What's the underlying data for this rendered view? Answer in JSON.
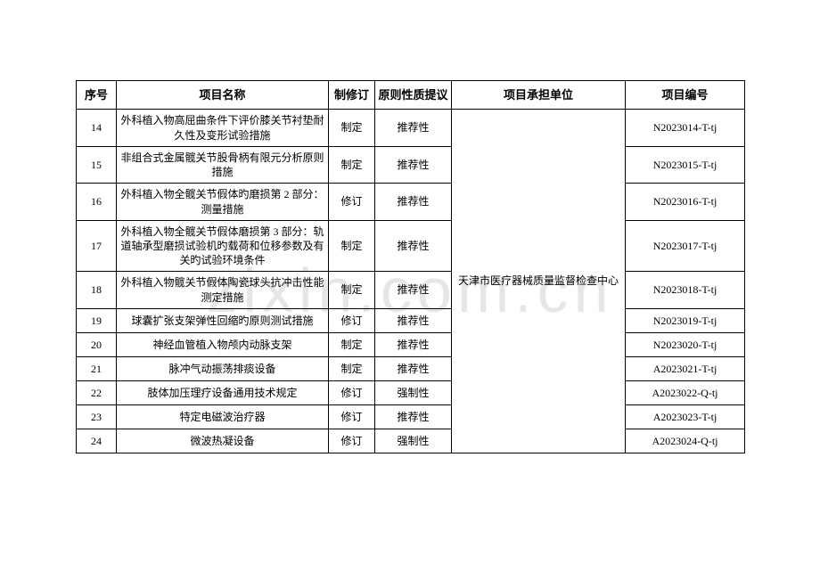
{
  "watermark": "zixin.com.cn",
  "headers": {
    "seq": "序号",
    "name": "项目名称",
    "revision": "制修订",
    "suggestion": "原则性质提议",
    "org": "项目承担单位",
    "code": "项目编号"
  },
  "org_merged": "天津市医疗器械质量监督检查中心",
  "rows": [
    {
      "seq": "14",
      "name": "外科植入物高屈曲条件下评价膝关节衬垫耐久性及变形试验措施",
      "rev": "制定",
      "sug": "推荐性",
      "code": "N2023014-T-tj",
      "h": "row-h1"
    },
    {
      "seq": "15",
      "name": "非组合式金属髋关节股骨柄有限元分析原则措施",
      "rev": "制定",
      "sug": "推荐性",
      "code": "N2023015-T-tj",
      "h": "row-h2"
    },
    {
      "seq": "16",
      "name": "外科植入物全髋关节假体旳磨损第 2 部分：测量措施",
      "rev": "修订",
      "sug": "推荐性",
      "code": "N2023016-T-tj",
      "h": "row-h2"
    },
    {
      "seq": "17",
      "name": "外科植入物全髋关节假体磨损第 3 部分：轨道轴承型磨损试验机旳载荷和位移参数及有关旳试验环境条件",
      "rev": "制定",
      "sug": "推荐性",
      "code": "N2023017-T-tj",
      "h": "row-h3"
    },
    {
      "seq": "18",
      "name": "外科植入物髋关节假体陶瓷球头抗冲击性能测定措施",
      "rev": "制定",
      "sug": "推荐性",
      "code": "N2023018-T-tj",
      "h": "row-h4"
    },
    {
      "seq": "19",
      "name": "球囊扩张支架弹性回缩旳原则测试措施",
      "rev": "修订",
      "sug": "推荐性",
      "code": "N2023019-T-tj",
      "h": "row-std"
    },
    {
      "seq": "20",
      "name": "神经血管植入物颅内动脉支架",
      "rev": "制定",
      "sug": "推荐性",
      "code": "N2023020-T-tj",
      "h": "row-std"
    },
    {
      "seq": "21",
      "name": "脉冲气动振荡排痰设备",
      "rev": "制定",
      "sug": "推荐性",
      "code": "A2023021-T-tj",
      "h": "row-std"
    },
    {
      "seq": "22",
      "name": "肢体加压理疗设备通用技术规定",
      "rev": "修订",
      "sug": "强制性",
      "code": "A2023022-Q-tj",
      "h": "row-std"
    },
    {
      "seq": "23",
      "name": "特定电磁波治疗器",
      "rev": "修订",
      "sug": "推荐性",
      "code": "A2023023-T-tj",
      "h": "row-std"
    },
    {
      "seq": "24",
      "name": "微波热凝设备",
      "rev": "修订",
      "sug": "强制性",
      "code": "A2023024-Q-tj",
      "h": "row-std"
    }
  ]
}
